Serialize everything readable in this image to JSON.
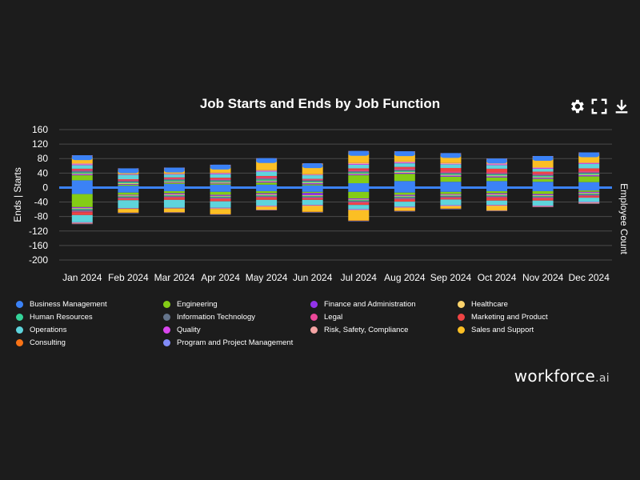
{
  "chart_data": {
    "type": "stacked-bar",
    "title": "Job Starts and Ends by Job Function",
    "ylabel": "Ends | Starts",
    "y2label": "Employee Count",
    "ylim": [
      -200,
      160
    ],
    "yticks": [
      160,
      120,
      80,
      40,
      0,
      -40,
      -80,
      -120,
      -160,
      -200
    ],
    "categories": [
      "Jan 2024",
      "Feb 2024",
      "Mar 2024",
      "Apr 2024",
      "May 2024",
      "Jun 2024",
      "Jul 2024",
      "Aug 2024",
      "Sep 2024",
      "Oct 2024",
      "Nov 2024",
      "Dec 2024"
    ],
    "series": [
      {
        "name": "Business Management",
        "color": "#3b82f6",
        "starts": [
          20,
          5,
          10,
          8,
          8,
          6,
          12,
          18,
          16,
          18,
          16,
          15
        ],
        "ends": [
          18,
          14,
          10,
          12,
          10,
          12,
          12,
          14,
          12,
          10,
          10,
          8
        ]
      },
      {
        "name": "Engineering",
        "color": "#84cc16",
        "starts": [
          14,
          3,
          3,
          3,
          6,
          3,
          22,
          20,
          14,
          10,
          8,
          16
        ],
        "ends": [
          36,
          6,
          6,
          8,
          6,
          3,
          18,
          6,
          6,
          6,
          8,
          4
        ]
      },
      {
        "name": "Finance and Administration",
        "color": "#9333ea",
        "starts": [
          3,
          2,
          2,
          2,
          3,
          3,
          3,
          3,
          3,
          3,
          3,
          3
        ],
        "ends": [
          3,
          2,
          3,
          3,
          3,
          6,
          3,
          3,
          2,
          3,
          3,
          3
        ]
      },
      {
        "name": "Healthcare",
        "color": "#fcd36b",
        "starts": [
          2,
          2,
          2,
          2,
          2,
          2,
          2,
          2,
          2,
          2,
          2,
          2
        ],
        "ends": [
          2,
          2,
          2,
          2,
          2,
          2,
          2,
          2,
          2,
          2,
          2,
          2
        ]
      },
      {
        "name": "Human Resources",
        "color": "#34d399",
        "starts": [
          3,
          3,
          3,
          3,
          3,
          3,
          3,
          3,
          3,
          3,
          3,
          3
        ],
        "ends": [
          2,
          2,
          2,
          2,
          2,
          2,
          2,
          2,
          2,
          2,
          2,
          2
        ]
      },
      {
        "name": "Information Technology",
        "color": "#64748b",
        "starts": [
          4,
          3,
          3,
          3,
          3,
          3,
          3,
          3,
          3,
          3,
          3,
          3
        ],
        "ends": [
          5,
          3,
          3,
          3,
          3,
          3,
          3,
          4,
          3,
          3,
          3,
          3
        ]
      },
      {
        "name": "Legal",
        "color": "#ec4899",
        "starts": [
          3,
          2,
          2,
          2,
          3,
          2,
          3,
          3,
          3,
          3,
          3,
          3
        ],
        "ends": [
          2,
          2,
          2,
          2,
          2,
          2,
          2,
          2,
          2,
          2,
          2,
          2
        ]
      },
      {
        "name": "Marketing and Product",
        "color": "#ef4444",
        "starts": [
          3,
          3,
          3,
          4,
          4,
          2,
          5,
          5,
          10,
          10,
          6,
          8
        ],
        "ends": [
          8,
          4,
          6,
          6,
          6,
          4,
          6,
          6,
          4,
          8,
          6,
          4
        ]
      },
      {
        "name": "Operations",
        "color": "#5ed4dc",
        "starts": [
          10,
          12,
          8,
          10,
          12,
          10,
          10,
          10,
          10,
          10,
          8,
          12
        ],
        "ends": [
          20,
          22,
          22,
          18,
          16,
          14,
          12,
          14,
          16,
          12,
          14,
          12
        ]
      },
      {
        "name": "Quality",
        "color": "#d946ef",
        "starts": [
          2,
          1,
          1,
          2,
          2,
          1,
          2,
          2,
          1,
          2,
          2,
          2
        ],
        "ends": [
          1,
          1,
          1,
          1,
          1,
          1,
          1,
          1,
          1,
          1,
          1,
          1
        ]
      },
      {
        "name": "Risk, Safety, Compliance",
        "color": "#f4a3a3",
        "starts": [
          3,
          2,
          2,
          2,
          2,
          2,
          3,
          3,
          3,
          3,
          2,
          2
        ],
        "ends": [
          2,
          1,
          1,
          2,
          2,
          2,
          2,
          2,
          2,
          2,
          1,
          2
        ]
      },
      {
        "name": "Sales and Support",
        "color": "#fbbf24",
        "starts": [
          18,
          12,
          12,
          18,
          30,
          28,
          30,
          25,
          24,
          10,
          28,
          25
        ],
        "ends": [
          0,
          10,
          10,
          14,
          8,
          16,
          28,
          8,
          6,
          12,
          0,
          0
        ]
      },
      {
        "name": "Consulting",
        "color": "#f97316",
        "starts": [
          2,
          1,
          2,
          2,
          1,
          1,
          1,
          1,
          1,
          1,
          1,
          1
        ],
        "ends": [
          1,
          1,
          1,
          1,
          1,
          1,
          1,
          1,
          1,
          1,
          1,
          1
        ]
      },
      {
        "name": "Program and Project Management",
        "color": "#818cf8",
        "starts": [
          2,
          2,
          2,
          2,
          2,
          1,
          2,
          2,
          2,
          2,
          2,
          2
        ],
        "ends": [
          1,
          1,
          1,
          1,
          1,
          1,
          1,
          1,
          1,
          1,
          1,
          1
        ]
      }
    ],
    "zero_line_color": "#3b82f6"
  },
  "toolbar": {
    "settings_icon": "gear-icon",
    "fullscreen_icon": "expand-icon",
    "download_icon": "download-icon"
  },
  "brand": {
    "name": "workforce",
    "suffix": ".ai"
  }
}
